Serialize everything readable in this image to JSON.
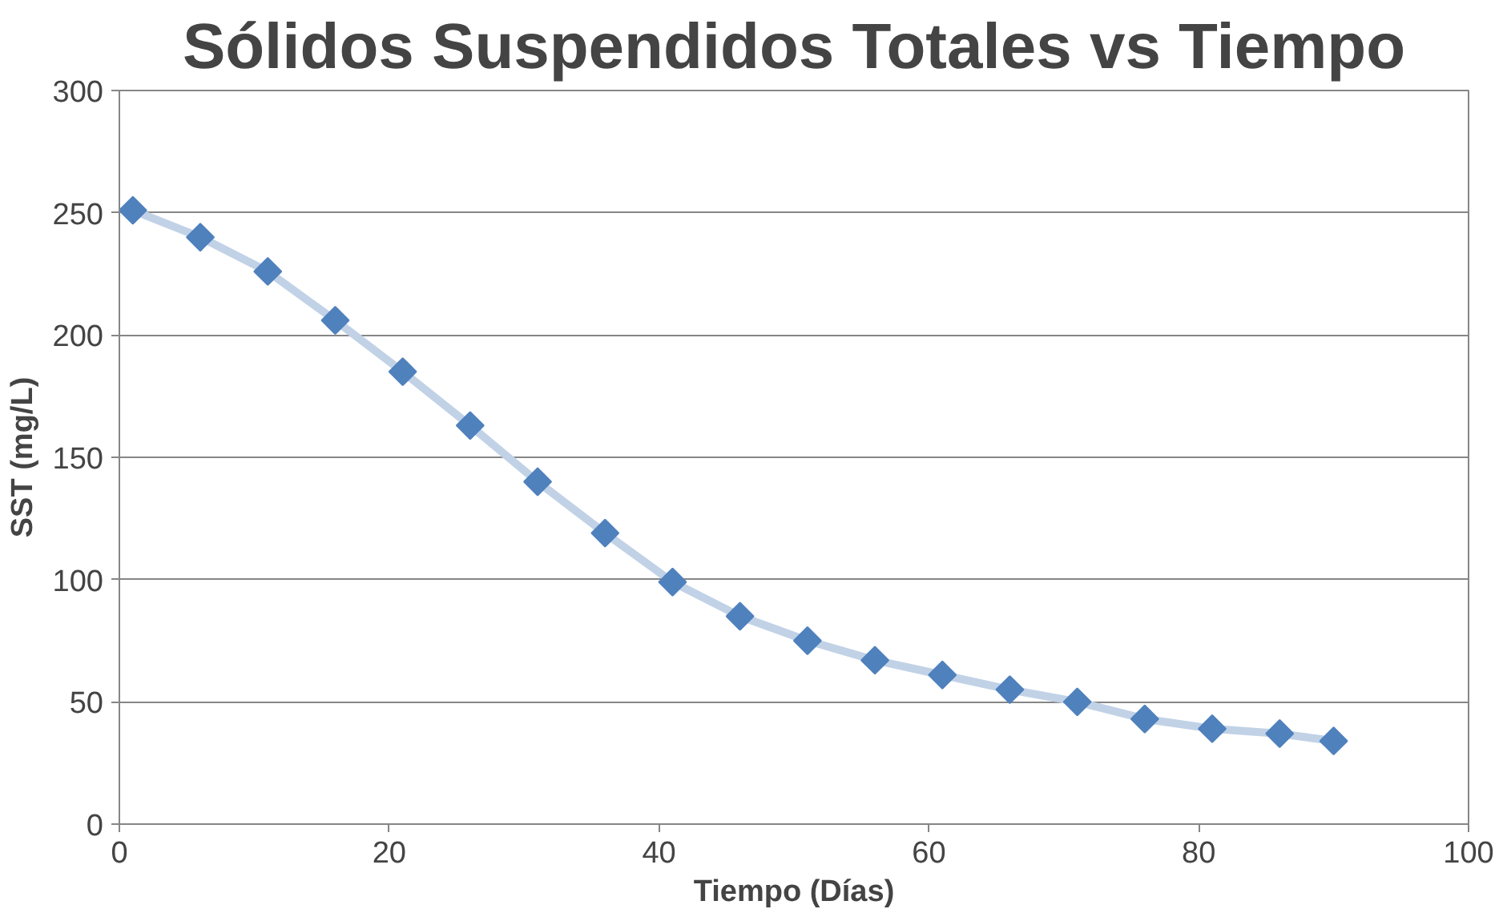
{
  "chart_data": {
    "type": "line",
    "title": "Sólidos Suspendidos Totales vs Tiempo",
    "xlabel": "Tiempo (Días)",
    "ylabel": "SST (mg/L)",
    "x": [
      1,
      6,
      11,
      16,
      21,
      26,
      31,
      36,
      41,
      46,
      51,
      56,
      61,
      66,
      71,
      76,
      81,
      86,
      90
    ],
    "series": [
      {
        "color": "#4f81bd",
        "values": [
          251,
          240,
          226,
          206,
          185,
          163,
          140,
          119,
          99,
          85,
          75,
          67,
          61,
          55,
          50,
          43,
          39,
          37,
          34
        ]
      }
    ],
    "xlim": [
      0,
      100
    ],
    "xticks": [
      0,
      20,
      40,
      60,
      80,
      100
    ],
    "ylim": [
      0,
      300
    ],
    "yticks": [
      0,
      50,
      100,
      150,
      200,
      250,
      300
    ],
    "grid": "y",
    "marker": "diamond",
    "line_style": "solid"
  }
}
